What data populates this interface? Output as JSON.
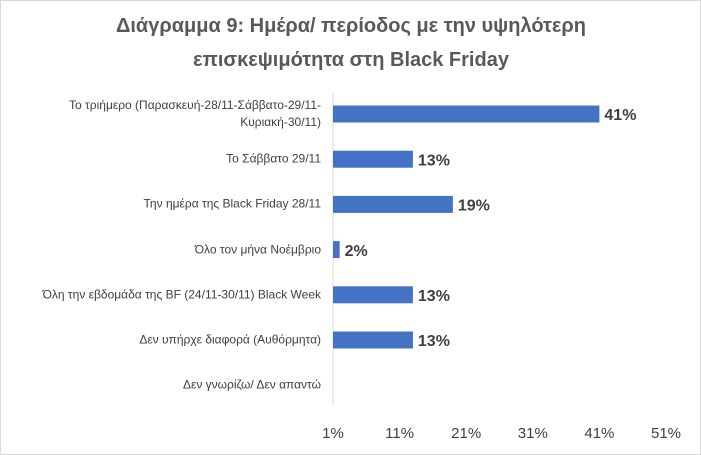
{
  "chart_data": {
    "type": "hbar",
    "title": "Διάγραμμα 9: Ημέρα/ περίοδος με την υψηλότερη επισκεψιμότητα στη Black Friday",
    "categories": [
      "Το τριήμερο (Παρασκευή-28/11-Σάββατο-29/11-Κυριακή-30/11)",
      "Το Σάββατο 29/11",
      "Την ημέρα της Black Friday 28/11",
      "Όλο τον μήνα Νοέμβριο",
      "Όλη την εβδομάδα της BF (24/11-30/11) Black Week",
      "Δεν υπήρχε διαφορά (Αυθόρμητα)",
      "Δεν γνωρίζω/ Δεν απαντώ"
    ],
    "values": [
      41,
      13,
      19,
      2,
      13,
      13,
      null
    ],
    "value_labels": [
      "41%",
      "13%",
      "19%",
      "2%",
      "13%",
      "13%",
      null
    ],
    "color": "#4472c4",
    "xlim": [
      1,
      51
    ],
    "xticks": [
      {
        "value": 1,
        "label": "1%"
      },
      {
        "value": 11,
        "label": "11%"
      },
      {
        "value": 21,
        "label": "21%"
      },
      {
        "value": 31,
        "label": "31%"
      },
      {
        "value": 41,
        "label": "41%"
      },
      {
        "value": 51,
        "label": "51%"
      }
    ]
  }
}
